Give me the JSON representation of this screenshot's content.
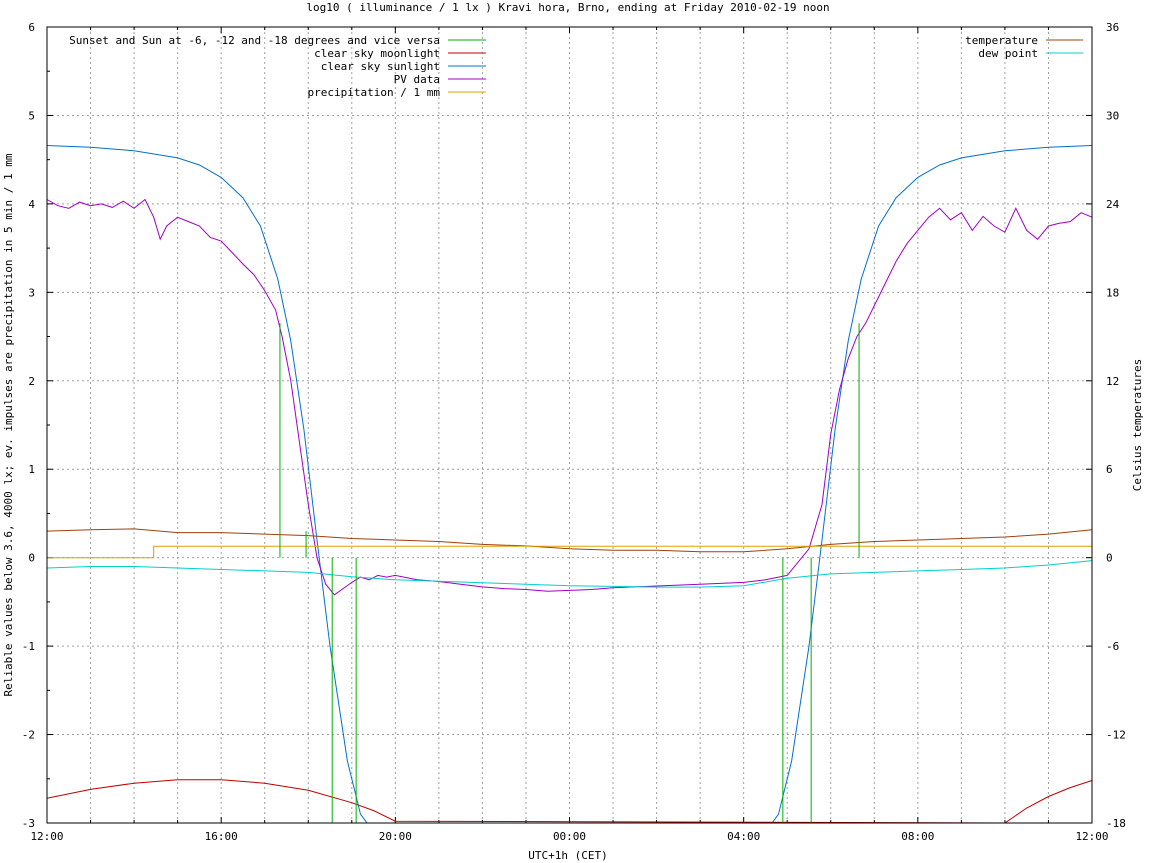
{
  "chart_data": {
    "type": "line",
    "title": "log10 ( illuminance / 1 lx ) Kravi hora, Brno, ending at Friday 2010-02-19 noon",
    "xlabel": "UTC+1h (CET)",
    "ylabel": "Reliable values below 3.6, 4000 lx; ev. impulses are precipitation in 5 min / 1 mm",
    "y2label": "Celsius temperatures",
    "x_unit": "hours since 12:00",
    "xlim": [
      0,
      24
    ],
    "ylim": [
      -3,
      6
    ],
    "y2lim": [
      -18,
      36
    ],
    "grid": true,
    "x_tick_labels": [
      "12:00",
      "16:00",
      "20:00",
      "00:00",
      "04:00",
      "08:00",
      "12:00"
    ],
    "y_ticks": [
      -3,
      -2,
      -1,
      0,
      1,
      2,
      3,
      4,
      5,
      6
    ],
    "y2_ticks": [
      -18,
      -12,
      -6,
      0,
      6,
      12,
      18,
      24,
      30,
      36
    ],
    "legend_left": [
      {
        "name": "Sunset and Sun at -6, -12 and -18 degrees and vice versa",
        "color": "#00b000"
      },
      {
        "name": "clear sky moonlight",
        "color": "#c00000"
      },
      {
        "name": "clear sky sunlight",
        "color": "#0070d0"
      },
      {
        "name": "PV data",
        "color": "#a000c8"
      },
      {
        "name": "precipitation / 1 mm",
        "color": "#e0a000"
      }
    ],
    "legend_right": [
      {
        "name": "temperature",
        "color": "#a0400a"
      },
      {
        "name": "dew point",
        "color": "#00d0d0"
      }
    ],
    "sun_events": [
      {
        "x": 5.35,
        "top": 2.65
      },
      {
        "x": 5.95,
        "top": 0.3
      },
      {
        "x": 6.55,
        "top": 0.0
      },
      {
        "x": 7.1,
        "top": 0.0
      },
      {
        "x": 16.9,
        "top": 0.0
      },
      {
        "x": 17.55,
        "top": 0.0
      },
      {
        "x": 18.65,
        "top": 2.65
      }
    ],
    "series": [
      {
        "name": "clear sky sunlight",
        "color": "#0070d0",
        "x": [
          0,
          1,
          2,
          3,
          3.5,
          4,
          4.5,
          4.9,
          5.3,
          5.6,
          5.9,
          6.2,
          6.5,
          6.9,
          7.2,
          7.35,
          16.65,
          16.8,
          17.1,
          17.5,
          17.8,
          18.1,
          18.4,
          18.7,
          19.1,
          19.5,
          20,
          20.5,
          21,
          22,
          23,
          24
        ],
        "y": [
          4.66,
          4.64,
          4.6,
          4.52,
          4.44,
          4.3,
          4.07,
          3.75,
          3.15,
          2.45,
          1.45,
          0.2,
          -1.0,
          -2.3,
          -2.9,
          -3.0,
          -3.0,
          -2.9,
          -2.3,
          -1.0,
          0.2,
          1.45,
          2.45,
          3.15,
          3.75,
          4.07,
          4.3,
          4.44,
          4.52,
          4.6,
          4.64,
          4.66
        ]
      },
      {
        "name": "clear sky moonlight",
        "color": "#c00000",
        "x": [
          0,
          1,
          2,
          3,
          4,
          5,
          6,
          7,
          7.5,
          8.0,
          22.0,
          22.5,
          23,
          23.5,
          24
        ],
        "y": [
          -2.72,
          -2.62,
          -2.55,
          -2.51,
          -2.51,
          -2.55,
          -2.63,
          -2.77,
          -2.86,
          -2.98,
          -3.0,
          -2.83,
          -2.7,
          -2.6,
          -2.52
        ]
      },
      {
        "name": "PV data",
        "color": "#a000c8",
        "x": [
          0,
          0.25,
          0.5,
          0.75,
          1,
          1.25,
          1.5,
          1.75,
          2,
          2.25,
          2.45,
          2.6,
          2.75,
          3,
          3.25,
          3.5,
          3.75,
          4,
          4.25,
          4.5,
          4.75,
          5,
          5.25,
          5.4,
          5.6,
          5.8,
          6.0,
          6.2,
          6.4,
          6.6,
          6.8,
          7.0,
          7.2,
          7.4,
          7.6,
          7.8,
          8,
          8.5,
          9,
          9.5,
          10,
          10.5,
          11,
          11.5,
          12,
          12.5,
          13,
          14,
          15,
          16,
          16.5,
          17,
          17.5,
          17.8,
          18.0,
          18.2,
          18.4,
          18.6,
          18.8,
          19,
          19.25,
          19.5,
          19.75,
          20,
          20.25,
          20.5,
          20.75,
          21,
          21.25,
          21.5,
          21.75,
          22,
          22.25,
          22.5,
          22.75,
          23,
          23.25,
          23.5,
          23.75,
          24
        ],
        "y": [
          4.05,
          3.98,
          3.95,
          4.02,
          3.98,
          4.0,
          3.96,
          4.03,
          3.95,
          4.05,
          3.85,
          3.6,
          3.75,
          3.85,
          3.8,
          3.75,
          3.62,
          3.58,
          3.45,
          3.32,
          3.2,
          3.02,
          2.8,
          2.5,
          2.0,
          1.3,
          0.6,
          0.0,
          -0.3,
          -0.42,
          -0.35,
          -0.28,
          -0.22,
          -0.25,
          -0.2,
          -0.22,
          -0.2,
          -0.25,
          -0.27,
          -0.3,
          -0.33,
          -0.35,
          -0.36,
          -0.38,
          -0.37,
          -0.36,
          -0.34,
          -0.32,
          -0.3,
          -0.28,
          -0.25,
          -0.2,
          0.1,
          0.6,
          1.4,
          1.9,
          2.25,
          2.5,
          2.65,
          2.85,
          3.1,
          3.35,
          3.55,
          3.7,
          3.85,
          3.95,
          3.82,
          3.9,
          3.7,
          3.86,
          3.75,
          3.68,
          3.95,
          3.7,
          3.6,
          3.75,
          3.78,
          3.8,
          3.9,
          3.85
        ]
      },
      {
        "name": "temperature",
        "axis": "y2",
        "color": "#a0400a",
        "x": [
          0,
          1,
          2,
          3,
          4,
          5,
          6,
          7,
          8,
          9,
          10,
          11,
          12,
          13,
          14,
          15,
          16,
          17,
          18,
          19,
          20,
          21,
          22,
          23,
          24
        ],
        "y": [
          1.8,
          1.9,
          1.95,
          1.7,
          1.7,
          1.6,
          1.5,
          1.3,
          1.2,
          1.1,
          0.9,
          0.8,
          0.6,
          0.5,
          0.5,
          0.4,
          0.4,
          0.6,
          0.9,
          1.1,
          1.2,
          1.3,
          1.4,
          1.6,
          1.9
        ]
      },
      {
        "name": "dew point",
        "axis": "y2",
        "color": "#00d0d0",
        "x": [
          0,
          1,
          2,
          3,
          4,
          5,
          6,
          7,
          8,
          9,
          10,
          11,
          12,
          13,
          14,
          15,
          16,
          17,
          18,
          19,
          20,
          21,
          22,
          23,
          24
        ],
        "y": [
          -0.7,
          -0.6,
          -0.6,
          -0.7,
          -0.8,
          -0.9,
          -1.0,
          -1.3,
          -1.5,
          -1.6,
          -1.7,
          -1.8,
          -1.9,
          -1.95,
          -2.0,
          -2.0,
          -1.9,
          -1.4,
          -1.1,
          -1.0,
          -0.9,
          -0.8,
          -0.7,
          -0.5,
          -0.2
        ]
      },
      {
        "name": "precipitation / 1 mm",
        "color": "#e0a000",
        "x": [
          0,
          2.45,
          2.45,
          24
        ],
        "y": [
          0,
          0,
          0.13,
          0.13
        ]
      }
    ]
  }
}
